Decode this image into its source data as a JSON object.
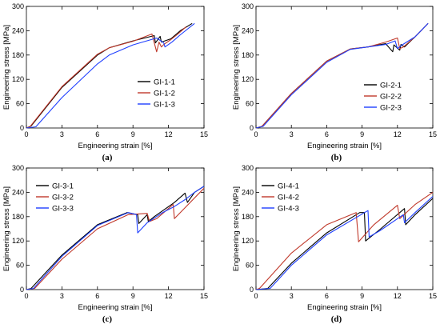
{
  "chart_data": [
    {
      "type": "line",
      "panel_label": "(a)",
      "xlabel": "Engineering strain [%]",
      "ylabel": "Engineering stress [MPa]",
      "xlim": [
        0,
        15
      ],
      "ylim": [
        0,
        300
      ],
      "xticks": [
        0,
        3,
        6,
        9,
        12,
        15
      ],
      "yticks": [
        0,
        60,
        120,
        180,
        240,
        300
      ],
      "legend": "right-middle",
      "series": [
        {
          "name": "GI-1-1",
          "color": "#000000",
          "x": [
            0,
            0.4,
            3,
            6,
            7,
            9,
            10.8,
            10.9,
            11.3,
            11.4,
            12.2,
            13,
            14
          ],
          "y": [
            0,
            5,
            100,
            180,
            198,
            215,
            228,
            210,
            226,
            212,
            220,
            240,
            258
          ]
        },
        {
          "name": "GI-1-2",
          "color": "#c0392b",
          "x": [
            0,
            0.3,
            3,
            6,
            7,
            9,
            10.6,
            11,
            11.2,
            11.4,
            11.6,
            12.2,
            12.8,
            13.5
          ],
          "y": [
            0,
            3,
            102,
            182,
            198,
            214,
            232,
            188,
            212,
            200,
            206,
            218,
            232,
            250
          ]
        },
        {
          "name": "GI-1-3",
          "color": "#1f3fff",
          "x": [
            0,
            0.8,
            3,
            6,
            7,
            9,
            11,
            11.6,
            11.7,
            12.3,
            13,
            14.2
          ],
          "y": [
            0,
            3,
            75,
            158,
            180,
            205,
            222,
            210,
            200,
            212,
            230,
            258
          ]
        }
      ]
    },
    {
      "type": "line",
      "panel_label": "(b)",
      "xlabel": "Engineering strain [%]",
      "ylabel": "Engineering stress [MPa]",
      "xlim": [
        0,
        15
      ],
      "ylim": [
        0,
        300
      ],
      "xticks": [
        0,
        3,
        6,
        9,
        12,
        15
      ],
      "yticks": [
        0,
        60,
        120,
        180,
        240,
        300
      ],
      "legend": "right-middle",
      "series": [
        {
          "name": "GI-2-1",
          "color": "#000000",
          "x": [
            0,
            0.5,
            3,
            6,
            8,
            9.5,
            11,
            11.6,
            11.7,
            12.2,
            12.3,
            12.6,
            13.5,
            14.6
          ],
          "y": [
            0,
            4,
            85,
            165,
            195,
            200,
            208,
            188,
            205,
            192,
            206,
            200,
            225,
            258
          ]
        },
        {
          "name": "GI-2-2",
          "color": "#c0392b",
          "x": [
            0,
            0.5,
            3,
            6,
            8,
            9.5,
            11,
            12,
            12.2,
            12.5,
            13.5,
            14.6
          ],
          "y": [
            0,
            4,
            85,
            165,
            195,
            200,
            212,
            222,
            196,
            200,
            225,
            258
          ]
        },
        {
          "name": "GI-2-3",
          "color": "#1f3fff",
          "x": [
            0,
            0.6,
            3,
            6,
            8,
            9.5,
            11,
            11.8,
            12,
            12.4,
            13.5,
            14.6
          ],
          "y": [
            0,
            4,
            82,
            162,
            194,
            200,
            206,
            215,
            196,
            205,
            225,
            258
          ]
        }
      ]
    },
    {
      "type": "line",
      "panel_label": "(c)",
      "xlabel": "Engineering strain [%]",
      "ylabel": "Engineering stress [MPa]",
      "xlim": [
        0,
        15
      ],
      "ylim": [
        0,
        300
      ],
      "xticks": [
        0,
        3,
        6,
        9,
        12,
        15
      ],
      "yticks": [
        0,
        60,
        120,
        180,
        240,
        300
      ],
      "legend": "top-left",
      "series": [
        {
          "name": "GI-3-1",
          "color": "#000000",
          "x": [
            0,
            0.4,
            3,
            6,
            8.5,
            9.4,
            9.5,
            10.2,
            10.3,
            10.8,
            12.5,
            13.4,
            13.6,
            14.2,
            15
          ],
          "y": [
            0,
            3,
            85,
            160,
            190,
            185,
            163,
            185,
            168,
            180,
            215,
            238,
            215,
            240,
            255
          ]
        },
        {
          "name": "GI-3-2",
          "color": "#c0392b",
          "x": [
            0,
            0.7,
            3,
            6,
            8.6,
            10.2,
            10.4,
            11,
            12.4,
            12.5,
            13.5,
            15
          ],
          "y": [
            0,
            3,
            75,
            150,
            185,
            188,
            168,
            175,
            210,
            175,
            205,
            250
          ]
        },
        {
          "name": "GI-3-3",
          "color": "#1f3fff",
          "x": [
            0,
            0.6,
            3,
            6,
            8.6,
            9.3,
            9.4,
            10.2,
            11.5,
            12.5,
            13.4,
            14.2,
            15
          ],
          "y": [
            0,
            3,
            82,
            158,
            190,
            185,
            140,
            165,
            190,
            205,
            222,
            240,
            255
          ]
        }
      ]
    },
    {
      "type": "line",
      "panel_label": "(d)",
      "xlabel": "Engineering strain [%]",
      "ylabel": "Engineering stress [MPa]",
      "xlim": [
        0,
        15
      ],
      "ylim": [
        0,
        300
      ],
      "xticks": [
        0,
        3,
        6,
        9,
        12,
        15
      ],
      "yticks": [
        0,
        60,
        120,
        180,
        240,
        300
      ],
      "legend": "top-left",
      "series": [
        {
          "name": "GI-4-1",
          "color": "#000000",
          "x": [
            0,
            1,
            3,
            6,
            8.8,
            9.2,
            9.3,
            10.5,
            12.6,
            12.7,
            13.5,
            15
          ],
          "y": [
            0,
            3,
            65,
            140,
            190,
            190,
            120,
            148,
            200,
            160,
            185,
            225
          ]
        },
        {
          "name": "GI-4-2",
          "color": "#c0392b",
          "x": [
            0,
            0.3,
            3,
            6,
            8.5,
            8.7,
            10,
            12,
            12.2,
            13.5,
            15
          ],
          "y": [
            0,
            3,
            90,
            160,
            190,
            118,
            160,
            208,
            175,
            210,
            240
          ]
        },
        {
          "name": "GI-4-3",
          "color": "#1f3fff",
          "x": [
            0,
            1.2,
            3,
            6,
            9.5,
            9.6,
            10.5,
            12.5,
            12.6,
            13.5,
            15
          ],
          "y": [
            0,
            3,
            60,
            135,
            195,
            130,
            145,
            185,
            165,
            190,
            230
          ]
        }
      ]
    }
  ]
}
